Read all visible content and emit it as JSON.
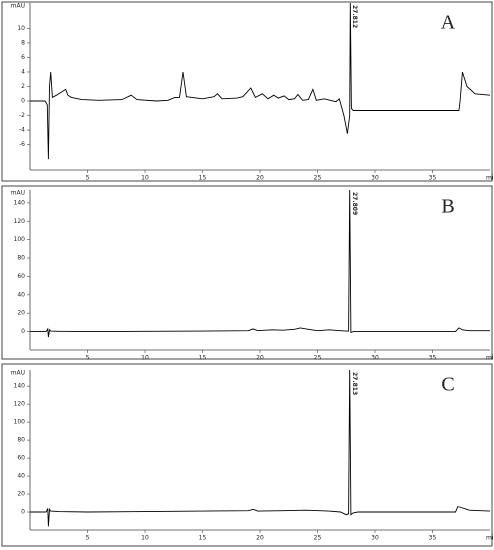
{
  "chart_data": [
    {
      "type": "line",
      "label": "A",
      "y_label": "mAU",
      "x_label": "min",
      "annotation": "27.812",
      "color": "#000000",
      "x": [
        0,
        1.3,
        1.5,
        1.6,
        1.7,
        1.8,
        1.95,
        2.3,
        2.8,
        3.1,
        3.3,
        3.6,
        4.5,
        6,
        8,
        8.8,
        9.3,
        11,
        12,
        12.6,
        13,
        13.3,
        13.6,
        15,
        16,
        16.3,
        16.7,
        18,
        18.5,
        19.2,
        19.6,
        20.2,
        20.7,
        21.2,
        21.6,
        22.1,
        22.5,
        23,
        23.3,
        23.7,
        24.2,
        24.6,
        24.9,
        25.6,
        26.1,
        26.6,
        26.9,
        27.3,
        27.6,
        27.8,
        27.85,
        27.95,
        28.1,
        37.3,
        37.4,
        37.6,
        38,
        38.7,
        40
      ],
      "values": [
        0,
        0,
        -0.5,
        -8,
        2,
        4,
        0.5,
        0.8,
        1.3,
        1.6,
        0.8,
        0.5,
        0.2,
        0.1,
        0.2,
        0.8,
        0.2,
        0,
        0.1,
        0.5,
        0.5,
        4,
        0.6,
        0.3,
        0.6,
        1,
        0.3,
        0.4,
        0.6,
        1.8,
        0.5,
        1,
        0.3,
        0.8,
        0.4,
        0.7,
        0.2,
        0.3,
        0.9,
        0.1,
        0.2,
        1.6,
        0.1,
        0.3,
        0.1,
        -0.1,
        0.3,
        -2,
        -4.5,
        -2,
        13.5,
        -1,
        -1.3,
        -1.3,
        0,
        4,
        2,
        1,
        0.8
      ],
      "xlim": [
        0,
        40
      ],
      "xticks": [
        5,
        10,
        15,
        20,
        25,
        30,
        35
      ],
      "ylim": [
        -9.5,
        13.5
      ],
      "yticks": [
        -6,
        -4,
        -2,
        0,
        2,
        4,
        6,
        8,
        10
      ]
    },
    {
      "type": "line",
      "label": "B",
      "y_label": "mAU",
      "x_label": "min",
      "annotation": "27.809",
      "color": "#000000",
      "x": [
        0,
        1.4,
        1.55,
        1.6,
        1.7,
        1.8,
        2.5,
        5,
        10,
        15,
        19,
        19.4,
        19.8,
        21,
        22,
        23,
        23.5,
        24,
        24.5,
        25,
        26,
        27,
        27.5,
        27.7,
        27.8,
        27.9,
        28.1,
        30,
        37,
        37.3,
        37.6,
        38.2,
        40
      ],
      "values": [
        0,
        0,
        3,
        -6,
        2,
        0.5,
        0.3,
        0,
        0.3,
        0.5,
        1,
        3,
        1,
        2,
        1.5,
        2.5,
        4,
        3,
        2,
        1,
        2,
        1,
        0.5,
        0.5,
        154,
        -1,
        0,
        0,
        0,
        4,
        2,
        1,
        1
      ],
      "xlim": [
        0,
        40
      ],
      "xticks": [
        5,
        10,
        15,
        20,
        25,
        30,
        35
      ],
      "ylim": [
        -20,
        154
      ],
      "yticks": [
        0,
        20,
        40,
        60,
        80,
        100,
        120,
        140
      ]
    },
    {
      "type": "line",
      "label": "C",
      "y_label": "mAU",
      "x_label": "min",
      "annotation": "27.813",
      "color": "#000000",
      "x": [
        0,
        1.4,
        1.55,
        1.6,
        1.7,
        1.8,
        2.5,
        5,
        10,
        15,
        19,
        19.4,
        19.8,
        22,
        24,
        26,
        27,
        27.5,
        27.7,
        27.8,
        27.9,
        28.1,
        28.5,
        30,
        37,
        37.2,
        37.5,
        38.2,
        40
      ],
      "values": [
        0,
        0,
        4,
        -16,
        3,
        1,
        0.5,
        0,
        0.5,
        1,
        1.5,
        3,
        1,
        1.5,
        2,
        1,
        0,
        -3,
        -2,
        158,
        -3,
        -1,
        0,
        0,
        0,
        6,
        5,
        2,
        1
      ],
      "xlim": [
        0,
        40
      ],
      "xticks": [
        5,
        10,
        15,
        20,
        25,
        30,
        35
      ],
      "ylim": [
        -20,
        158
      ],
      "yticks": [
        0,
        20,
        40,
        60,
        80,
        100,
        120,
        140
      ]
    }
  ]
}
